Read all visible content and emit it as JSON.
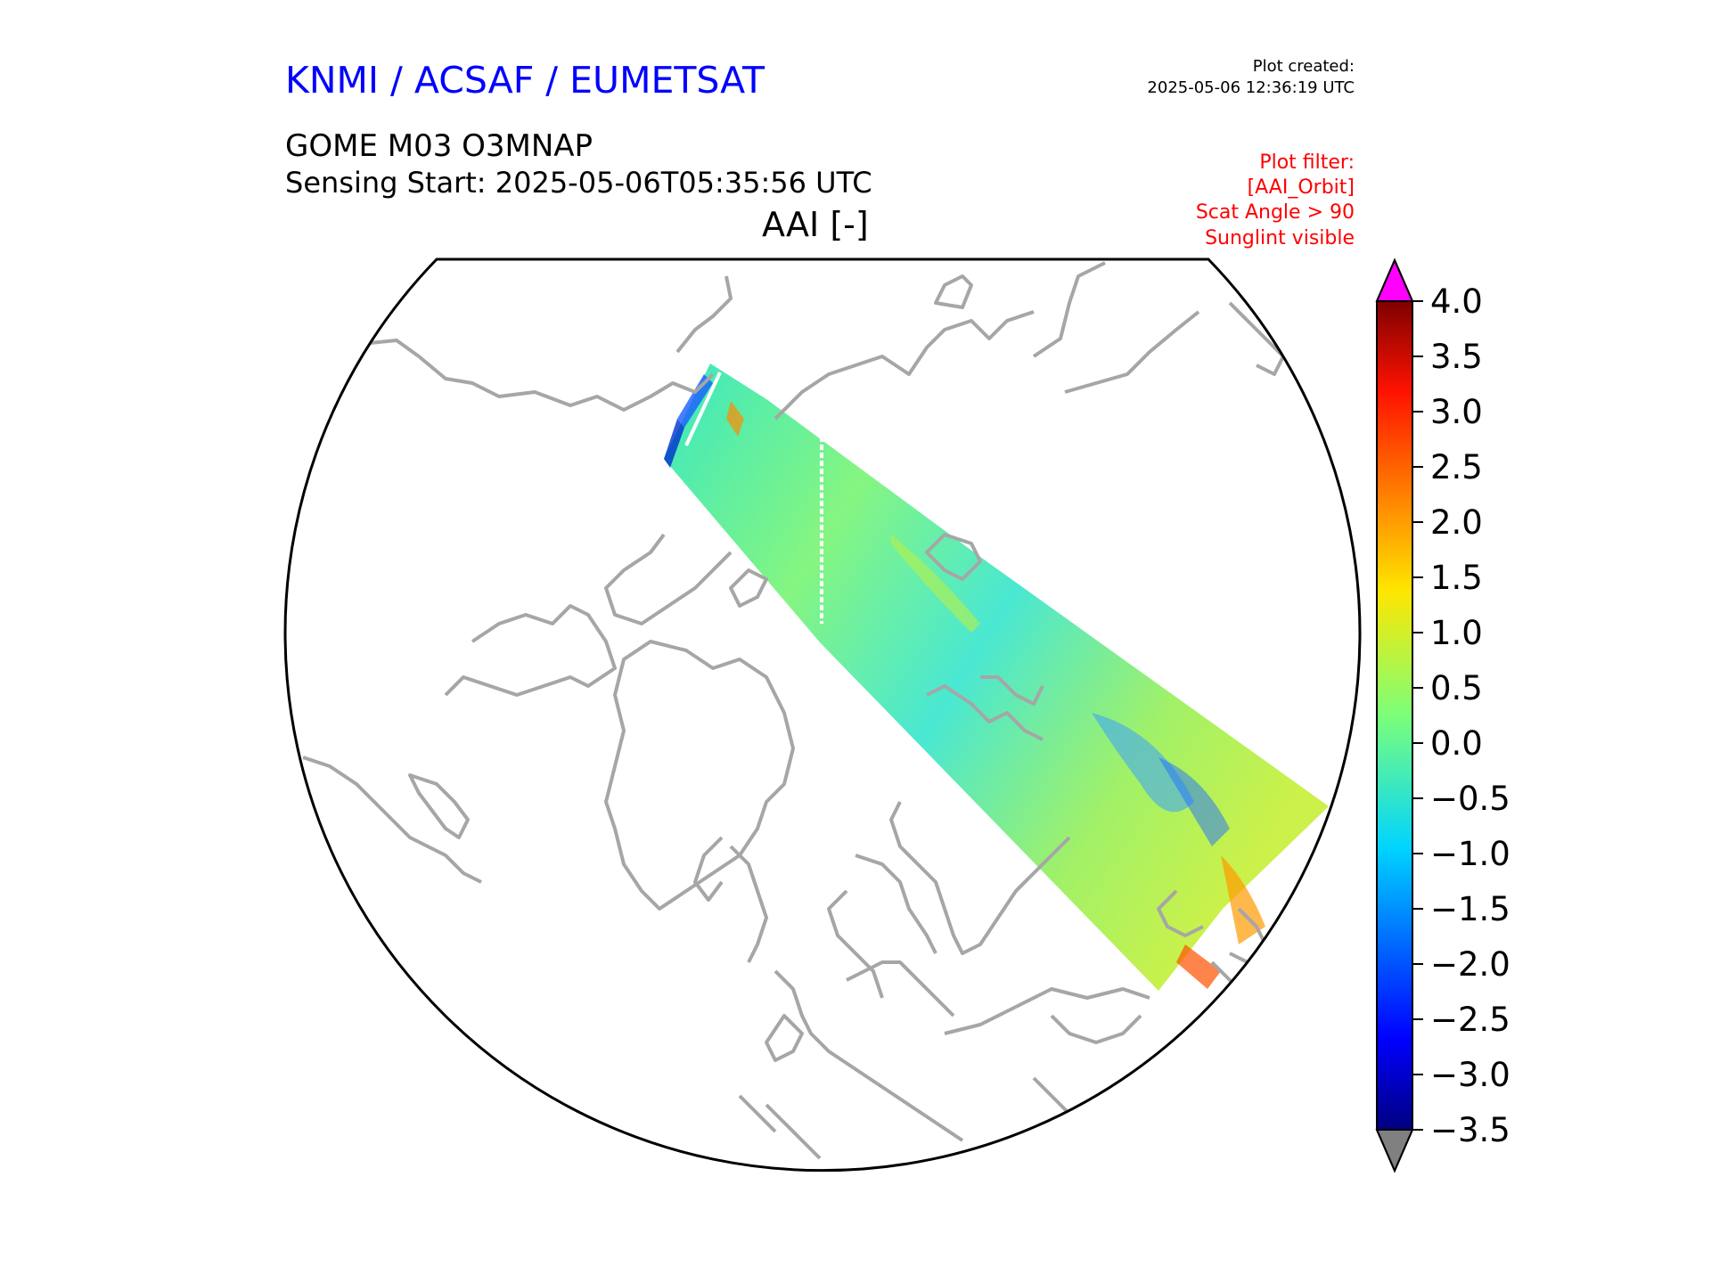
{
  "header": {
    "provider": "KNMI / ACSAF / EUMETSAT",
    "created_label": "Plot created:",
    "created_value": "2025-05-06 12:36:19 UTC",
    "product": "GOME M03 O3MNAP",
    "sensing_start": "Sensing Start: 2025-05-06T05:35:56 UTC",
    "map_title": "AAI [-]"
  },
  "filter": {
    "lines": [
      "Plot filter:",
      "[AAI_Orbit]",
      "Scat Angle > 90",
      "Sunglint visible"
    ]
  },
  "colors": {
    "provider": "#0000ff",
    "filter_text": "#ff0000",
    "coastline": "#a6a6a6",
    "over_range": "#ff00ff",
    "under_range": "#808080"
  },
  "colorbar": {
    "variable": "AAI",
    "unit": "-",
    "min": -3.5,
    "max": 4.0,
    "extend": "both",
    "tick_labels": [
      "4.0",
      "3.5",
      "3.0",
      "2.5",
      "2.0",
      "1.5",
      "1.0",
      "0.5",
      "0.0",
      "−0.5",
      "−1.0",
      "−1.5",
      "−2.0",
      "−2.5",
      "−3.0",
      "−3.5"
    ]
  },
  "map": {
    "projection": "north-polar-stereographic",
    "swath_value_range": [
      -3.0,
      3.0
    ],
    "typical_swath_value": 0.3
  }
}
